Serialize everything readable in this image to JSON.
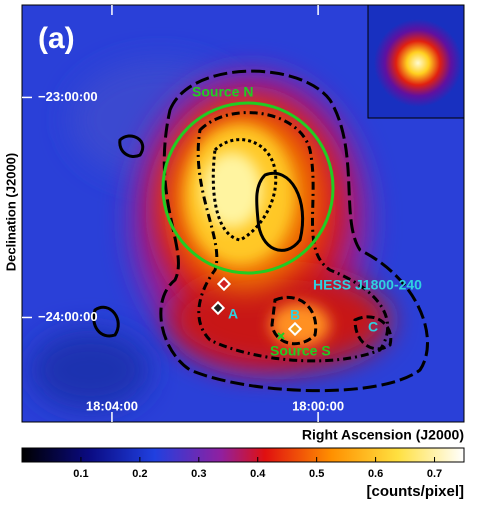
{
  "chart_data": {
    "type": "image",
    "panel_label": "(a)",
    "xlabel": "Right Ascension (J2000)",
    "ylabel": "Declination (J2000)",
    "xlim": [
      18.0958,
      17.9528
    ],
    "xticks": [
      {
        "value": 18.0667,
        "label": "18:04:00"
      },
      {
        "value": 18.0,
        "label": "18:00:00"
      }
    ],
    "ylim": [
      -22.58,
      -24.475
    ],
    "yticks": [
      {
        "value": -23,
        "label": "−23:00:00"
      },
      {
        "value": -24,
        "label": "−24:00:00"
      }
    ],
    "colorbar_label": "[counts/pixel]",
    "clim": [
      0,
      0.75
    ],
    "cticks": [
      0.1,
      0.2,
      0.3,
      0.4,
      0.5,
      0.6,
      0.7
    ],
    "annotations": {
      "source_n": "Source N",
      "hess": "HESS J1800-240",
      "a": "A",
      "b": "B",
      "c": "C",
      "source_s": "Source S"
    }
  }
}
